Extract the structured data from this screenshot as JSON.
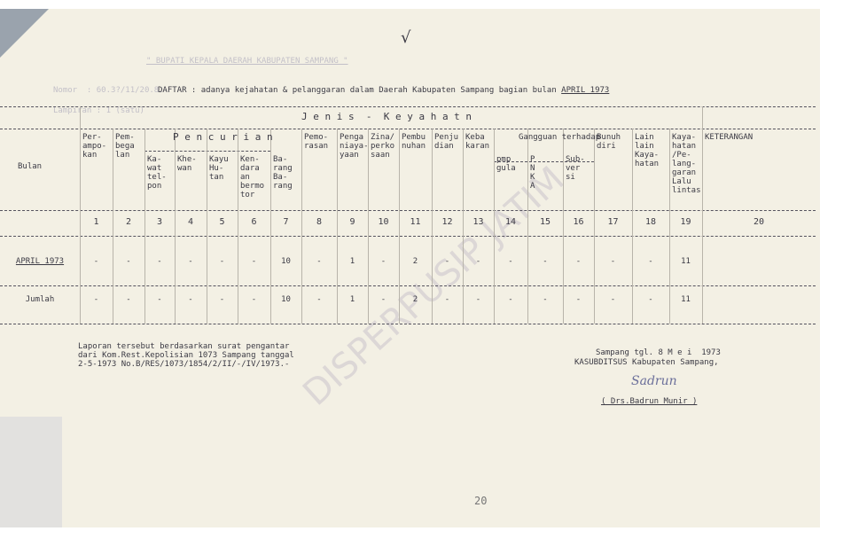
{
  "header": {
    "faint_heading": "\" BUPATI KEPALA DAERAH KABUPATEN SAMPANG \"",
    "faint_nomor": "Nomor  : 60.3?/11/20.8.-",
    "faint_lampiran": "Lampiran : 1 (satu)",
    "title_prefix": "DAFTAR : adanya kejahatan & pelanggaran dalam Daerah Kabupaten Sampang bagian bulan",
    "title_month": "APRIL 1973",
    "checkmark": "√"
  },
  "table": {
    "group_label": "J e n i s  -  K e y a h a t n",
    "row_label_header": "Bulan",
    "pencurian_label": "P e n c u r i a n",
    "gangguan_label": "Gangguan terhadap",
    "columns": [
      "Per- ampo- kan",
      "Pem- bega lan",
      "Ka- wat tel- pon",
      "Khe- wan",
      "Kayu Hu- tan",
      "Ken- dara an bermo tor",
      "Ba- rang Ba- rang",
      "Pemo- rasan",
      "Penga niaya- yaan",
      "Zina/ perko saan",
      "Pembu nuhan",
      "Penju dian",
      "Keba karan",
      "pmp gula",
      "P N K A",
      "Sub- ver si",
      "Bunuh diri",
      "Lain lain Kaya- hatan",
      "Kaya- hatan /Pe- lang- garan Lalu lintas",
      "KETERANGAN"
    ],
    "column_numbers": [
      "1",
      "2",
      "3",
      "4",
      "5",
      "6",
      "7",
      "8",
      "9",
      "10",
      "11",
      "12",
      "13",
      "14",
      "15",
      "16",
      "17",
      "18",
      "19",
      "20"
    ],
    "rows": [
      {
        "label": "APRIL 1973",
        "values": [
          "-",
          "-",
          "-",
          "-",
          "-",
          "-",
          "10",
          "-",
          "1",
          "-",
          "2",
          "-",
          "-",
          "-",
          "-",
          "-",
          "-",
          "-",
          "11",
          ""
        ]
      },
      {
        "label": "Jumlah",
        "values": [
          "-",
          "-",
          "-",
          "-",
          "-",
          "-",
          "10",
          "-",
          "1",
          "-",
          "2",
          "-",
          "-",
          "-",
          "-",
          "-",
          "-",
          "-",
          "11",
          ""
        ]
      }
    ]
  },
  "footer": {
    "note": [
      "Laporan tersebut berdasarkan surat pengantar",
      "dari Kom.Rest.Kepolisian 1073 Sampang tanggal",
      "2-5-1973 No.B/RES/1073/1854/2/II/-/IV/1973.-"
    ],
    "place_date": "Sampang tgl. 8 M e i  1973",
    "office": "KASUBDITSUS Kabupaten Sampang,",
    "signer": "( Drs.Badrun Munir )",
    "page_number": "20"
  },
  "watermark": "DISPERPUSIP JATIM"
}
